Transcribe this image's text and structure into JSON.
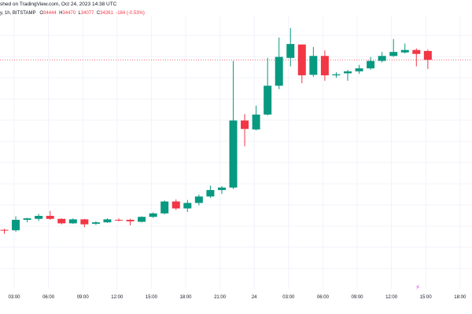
{
  "header": {
    "published_text": "shed on TradingView.com, Oct 24, 2023 14:38 UTC",
    "symbol_text": "y, 1h, BITSTAMP",
    "ohlc": {
      "o_label": "O",
      "o_value": "34444",
      "h_label": "H",
      "h_value": "34470",
      "l_label": "L",
      "l_value": "34077",
      "c_label": "C",
      "c_value": "34261",
      "change": "-184 (-0.53%)"
    }
  },
  "colors": {
    "up": "#089981",
    "down": "#f23645",
    "grid": "#f0f3fa",
    "price_line": "#f23645",
    "axis_text": "#131722",
    "marker": "#e040fb"
  },
  "icons": {
    "marker": "lightning-icon"
  },
  "chart_data": {
    "type": "candlestick",
    "x_tick_labels": [
      "03:00",
      "06:00",
      "09:00",
      "12:00",
      "15:00",
      "18:00",
      "21:00",
      "24",
      "03:00",
      "06:00",
      "09:00",
      "12:00",
      "15:00",
      "18:00"
    ],
    "last_price": 34261,
    "ylim": [
      29650,
      35150
    ],
    "grid": true,
    "candles": [
      {
        "o": 30840,
        "h": 30860,
        "l": 30760,
        "c": 30830
      },
      {
        "o": 30830,
        "h": 31110,
        "l": 30800,
        "c": 31040
      },
      {
        "o": 31040,
        "h": 31080,
        "l": 30990,
        "c": 31070
      },
      {
        "o": 31060,
        "h": 31160,
        "l": 31020,
        "c": 31120
      },
      {
        "o": 31120,
        "h": 31220,
        "l": 31040,
        "c": 31060
      },
      {
        "o": 31060,
        "h": 31070,
        "l": 30950,
        "c": 30970
      },
      {
        "o": 30970,
        "h": 31070,
        "l": 30960,
        "c": 31050
      },
      {
        "o": 31050,
        "h": 31060,
        "l": 30890,
        "c": 30950
      },
      {
        "o": 30960,
        "h": 31010,
        "l": 30940,
        "c": 30990
      },
      {
        "o": 30990,
        "h": 31070,
        "l": 30980,
        "c": 31050
      },
      {
        "o": 31040,
        "h": 31070,
        "l": 31010,
        "c": 31030
      },
      {
        "o": 31040,
        "h": 31060,
        "l": 30930,
        "c": 31010
      },
      {
        "o": 31000,
        "h": 31110,
        "l": 30990,
        "c": 31100
      },
      {
        "o": 31100,
        "h": 31190,
        "l": 31080,
        "c": 31170
      },
      {
        "o": 31170,
        "h": 31430,
        "l": 31150,
        "c": 31410
      },
      {
        "o": 31410,
        "h": 31450,
        "l": 31240,
        "c": 31270
      },
      {
        "o": 31270,
        "h": 31440,
        "l": 31200,
        "c": 31380
      },
      {
        "o": 31380,
        "h": 31550,
        "l": 31330,
        "c": 31510
      },
      {
        "o": 31510,
        "h": 31730,
        "l": 31480,
        "c": 31640
      },
      {
        "o": 31640,
        "h": 31720,
        "l": 31560,
        "c": 31690
      },
      {
        "o": 31690,
        "h": 34240,
        "l": 31660,
        "c": 33040
      },
      {
        "o": 33040,
        "h": 33170,
        "l": 32520,
        "c": 32870
      },
      {
        "o": 32860,
        "h": 33340,
        "l": 32840,
        "c": 33160
      },
      {
        "o": 33160,
        "h": 34300,
        "l": 33140,
        "c": 33740
      },
      {
        "o": 33740,
        "h": 34710,
        "l": 33670,
        "c": 34320
      },
      {
        "o": 34300,
        "h": 34900,
        "l": 34130,
        "c": 34580
      },
      {
        "o": 34570,
        "h": 34560,
        "l": 33790,
        "c": 33950
      },
      {
        "o": 33960,
        "h": 34520,
        "l": 33920,
        "c": 34340
      },
      {
        "o": 34340,
        "h": 34450,
        "l": 33840,
        "c": 33950
      },
      {
        "o": 33950,
        "h": 34010,
        "l": 33900,
        "c": 33970
      },
      {
        "o": 33990,
        "h": 34060,
        "l": 33840,
        "c": 34030
      },
      {
        "o": 34030,
        "h": 34160,
        "l": 33980,
        "c": 34090
      },
      {
        "o": 34090,
        "h": 34320,
        "l": 34060,
        "c": 34240
      },
      {
        "o": 34240,
        "h": 34420,
        "l": 34210,
        "c": 34340
      },
      {
        "o": 34340,
        "h": 34680,
        "l": 34320,
        "c": 34420
      },
      {
        "o": 34410,
        "h": 34590,
        "l": 34390,
        "c": 34460
      },
      {
        "o": 34460,
        "h": 34490,
        "l": 34130,
        "c": 34380
      },
      {
        "o": 34440,
        "h": 34470,
        "l": 34077,
        "c": 34261
      }
    ]
  }
}
